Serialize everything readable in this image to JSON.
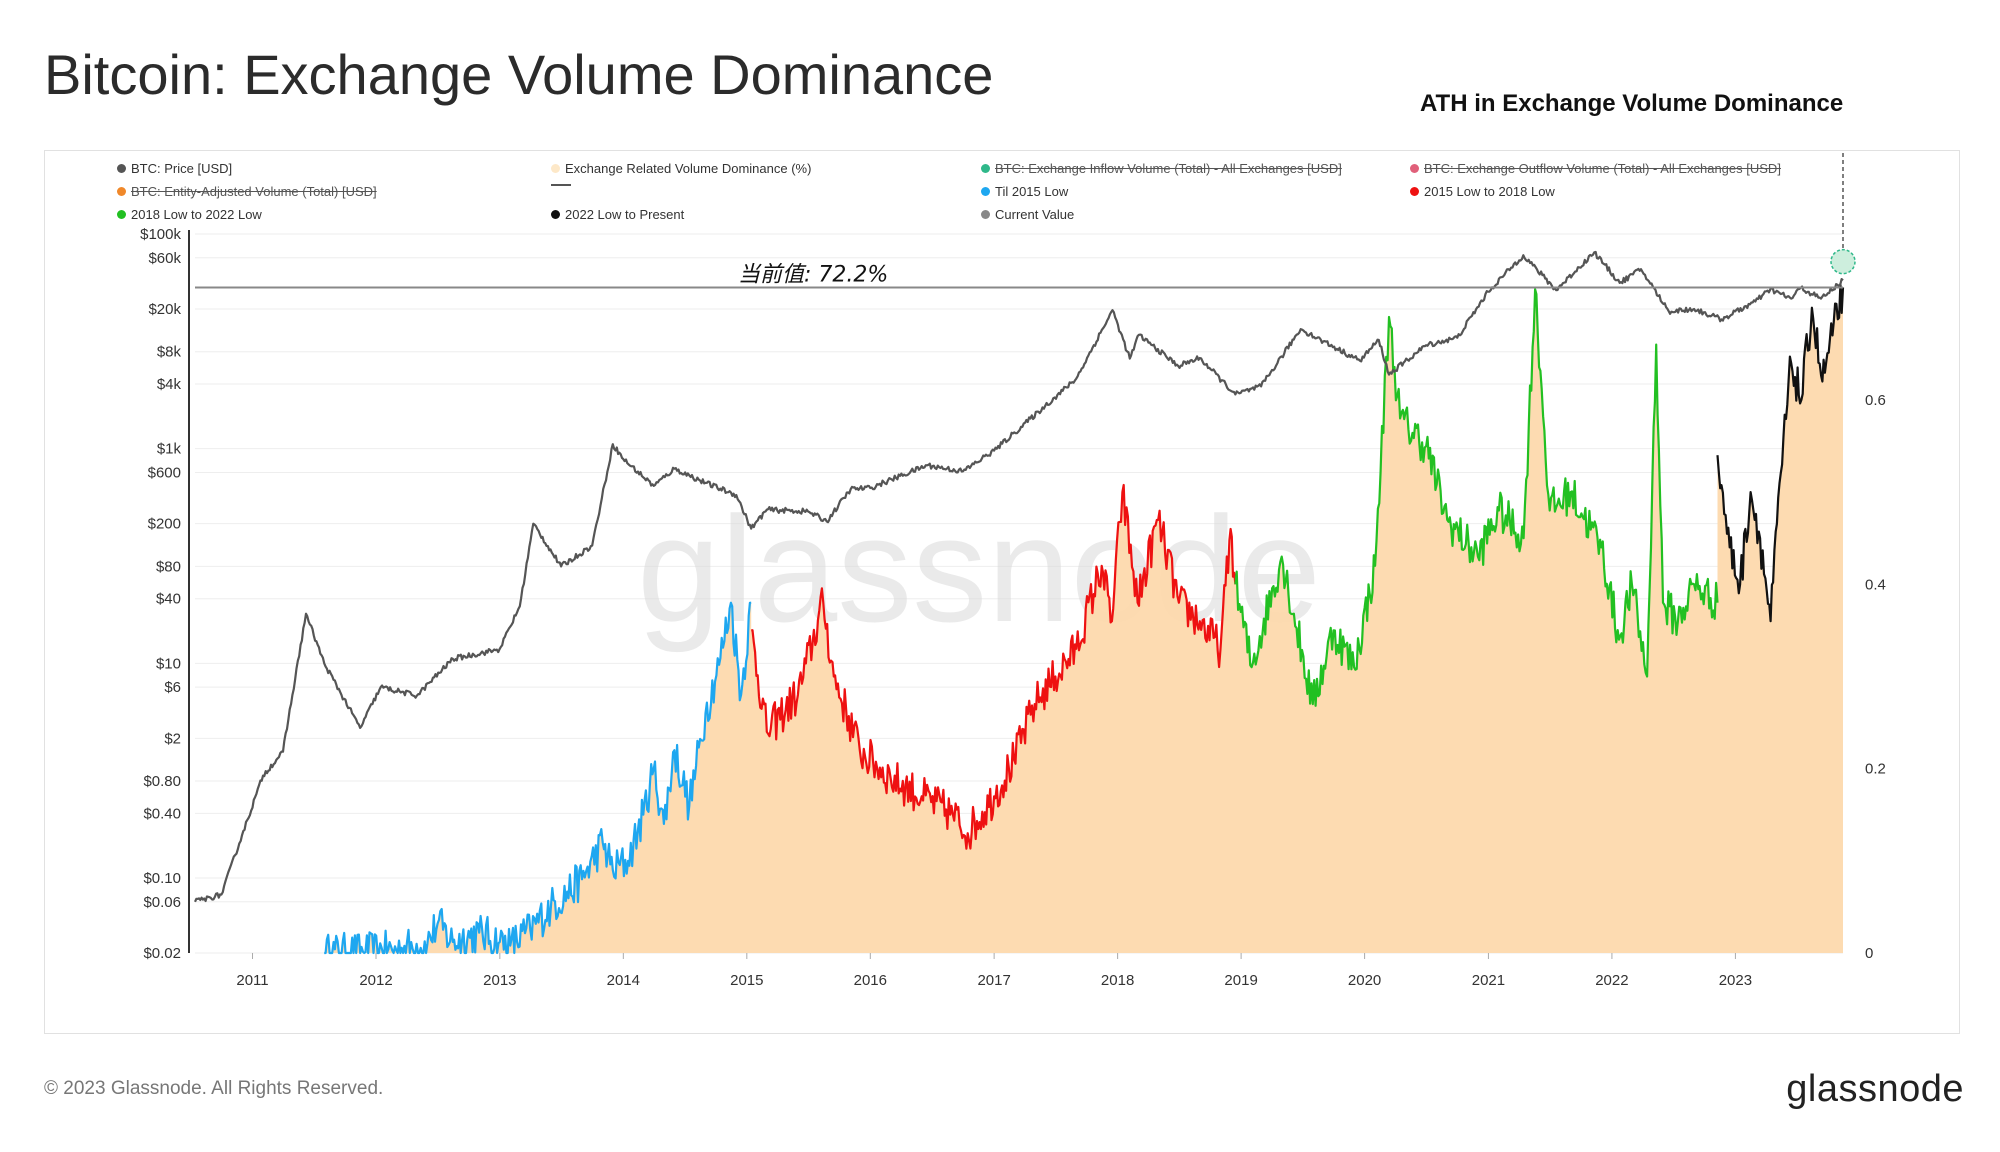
{
  "title": "Bitcoin: Exchange Volume Dominance",
  "ath_annotation": "ATH in Exchange Volume Dominance",
  "current_value_annotation": "当前值: 72.2%",
  "watermark": "glassnode",
  "footer": {
    "copyright": "© 2023 Glassnode. All Rights Reserved.",
    "logo": "glassnode"
  },
  "legend": [
    {
      "label": "BTC: Price [USD]",
      "color": "#555555",
      "struck": false,
      "marker": "dot"
    },
    {
      "label": "Exchange Related Volume Dominance (%)",
      "color": "#fde8c8",
      "struck": false,
      "marker": "dot"
    },
    {
      "label": "BTC: Exchange Inflow Volume (Total) - All Exchanges [USD]",
      "color": "#2fb88a",
      "struck": true,
      "marker": "dot"
    },
    {
      "label": "BTC: Exchange Outflow Volume (Total) - All Exchanges [USD]",
      "color": "#e0607a",
      "struck": true,
      "marker": "dot"
    },
    {
      "label": "BTC: Entity-Adjusted Volume (Total) [USD]",
      "color": "#f0882a",
      "struck": true,
      "marker": "dot"
    },
    {
      "label": "",
      "color": "#555555",
      "struck": false,
      "marker": "line"
    },
    {
      "label": "Til 2015 Low",
      "color": "#1ea7f0",
      "struck": false,
      "marker": "dot"
    },
    {
      "label": "2015 Low to 2018 Low",
      "color": "#ee1111",
      "struck": false,
      "marker": "dot"
    },
    {
      "label": "2018 Low to 2022 Low",
      "color": "#22c022",
      "struck": false,
      "marker": "dot"
    },
    {
      "label": "2022 Low to Present",
      "color": "#111111",
      "struck": false,
      "marker": "dot"
    },
    {
      "label": "Current Value",
      "color": "#888888",
      "struck": false,
      "marker": "dot"
    }
  ],
  "colors": {
    "price": "#555555",
    "dominance_fill": "#fdd9ad",
    "til_2015_low": "#1ea7f0",
    "low2015_to_low2018": "#ee1111",
    "low2018_to_low2022": "#22c022",
    "low2022_to_present": "#111111",
    "current_value_line": "#888888",
    "ath_marker": "#2fb88a"
  },
  "chart_data": {
    "type": "line",
    "x_axis": {
      "type": "date",
      "ticks": [
        "2011",
        "2012",
        "2013",
        "2014",
        "2015",
        "2016",
        "2017",
        "2018",
        "2019",
        "2020",
        "2021",
        "2022",
        "2023"
      ],
      "range": [
        "2010-07-15",
        "2023-11-15"
      ]
    },
    "y_left": {
      "label": "",
      "scale": "log",
      "range": [
        0.02,
        100000
      ],
      "ticks": [
        {
          "v": 100000,
          "t": "$100k"
        },
        {
          "v": 60000,
          "t": "$60k"
        },
        {
          "v": 20000,
          "t": "$20k"
        },
        {
          "v": 8000,
          "t": "$8k"
        },
        {
          "v": 4000,
          "t": "$4k"
        },
        {
          "v": 1000,
          "t": "$1k"
        },
        {
          "v": 600,
          "t": "$600"
        },
        {
          "v": 200,
          "t": "$200"
        },
        {
          "v": 80,
          "t": "$80"
        },
        {
          "v": 40,
          "t": "$40"
        },
        {
          "v": 10,
          "t": "$10"
        },
        {
          "v": 6,
          "t": "$6"
        },
        {
          "v": 2,
          "t": "$2"
        },
        {
          "v": 0.8,
          "t": "$0.80"
        },
        {
          "v": 0.4,
          "t": "$0.40"
        },
        {
          "v": 0.1,
          "t": "$0.10"
        },
        {
          "v": 0.06,
          "t": "$0.06"
        },
        {
          "v": 0.02,
          "t": "$0.02"
        }
      ]
    },
    "y_right": {
      "label": "",
      "scale": "linear",
      "range": [
        0,
        0.78
      ],
      "ticks": [
        0,
        0.2,
        0.4,
        0.6
      ]
    },
    "current_value": 0.722,
    "series": [
      {
        "name": "BTC: Price [USD]",
        "axis": "left",
        "points": [
          [
            "2010-07-15",
            0.06
          ],
          [
            "2010-10-01",
            0.07
          ],
          [
            "2010-12-01",
            0.25
          ],
          [
            "2011-02-01",
            0.9
          ],
          [
            "2011-04-01",
            1.5
          ],
          [
            "2011-06-08",
            29
          ],
          [
            "2011-08-01",
            10
          ],
          [
            "2011-11-15",
            2.5
          ],
          [
            "2012-01-15",
            6
          ],
          [
            "2012-05-01",
            5
          ],
          [
            "2012-08-15",
            11
          ],
          [
            "2012-12-31",
            13.5
          ],
          [
            "2013-03-01",
            34
          ],
          [
            "2013-04-10",
            200
          ],
          [
            "2013-07-01",
            80
          ],
          [
            "2013-10-01",
            125
          ],
          [
            "2013-12-01",
            1100
          ],
          [
            "2014-01-01",
            800
          ],
          [
            "2014-04-01",
            450
          ],
          [
            "2014-06-01",
            650
          ],
          [
            "2014-09-01",
            480
          ],
          [
            "2014-12-01",
            370
          ],
          [
            "2015-01-14",
            180
          ],
          [
            "2015-03-01",
            270
          ],
          [
            "2015-07-01",
            260
          ],
          [
            "2015-08-25",
            210
          ],
          [
            "2015-11-04",
            420
          ],
          [
            "2016-01-01",
            430
          ],
          [
            "2016-06-17",
            700
          ],
          [
            "2016-10-01",
            615
          ],
          [
            "2017-01-01",
            960
          ],
          [
            "2017-06-01",
            2500
          ],
          [
            "2017-09-01",
            4500
          ],
          [
            "2017-12-17",
            19500
          ],
          [
            "2018-02-06",
            6900
          ],
          [
            "2018-03-05",
            11500
          ],
          [
            "2018-06-29",
            5900
          ],
          [
            "2018-09-01",
            7000
          ],
          [
            "2018-12-15",
            3200
          ],
          [
            "2019-03-01",
            3800
          ],
          [
            "2019-06-26",
            13000
          ],
          [
            "2019-09-01",
            10000
          ],
          [
            "2019-12-18",
            6600
          ],
          [
            "2020-02-12",
            10300
          ],
          [
            "2020-03-13",
            4900
          ],
          [
            "2020-07-01",
            9200
          ],
          [
            "2020-10-01",
            10800
          ],
          [
            "2020-12-31",
            29000
          ],
          [
            "2021-04-14",
            63500
          ],
          [
            "2021-07-20",
            30000
          ],
          [
            "2021-11-10",
            67500
          ],
          [
            "2022-01-24",
            35000
          ],
          [
            "2022-03-28",
            47000
          ],
          [
            "2022-06-18",
            19000
          ],
          [
            "2022-09-01",
            20000
          ],
          [
            "2022-11-21",
            16000
          ],
          [
            "2023-03-01",
            23500
          ],
          [
            "2023-04-14",
            30500
          ],
          [
            "2023-06-15",
            25000
          ],
          [
            "2023-07-13",
            31500
          ],
          [
            "2023-09-11",
            25000
          ],
          [
            "2023-11-15",
            37000
          ]
        ]
      },
      {
        "name": "Til 2015 Low",
        "axis": "right",
        "points": [
          [
            "2011-08-01",
            0.0
          ],
          [
            "2011-12-01",
            0.001
          ],
          [
            "2012-03-01",
            0.003
          ],
          [
            "2012-06-01",
            0.01
          ],
          [
            "2012-07-01",
            0.032
          ],
          [
            "2012-08-15",
            0.012
          ],
          [
            "2012-11-01",
            0.022
          ],
          [
            "2013-01-01",
            0.012
          ],
          [
            "2013-02-01",
            0.008
          ],
          [
            "2013-04-01",
            0.025
          ],
          [
            "2013-06-01",
            0.05
          ],
          [
            "2013-09-01",
            0.08
          ],
          [
            "2013-11-01",
            0.12
          ],
          [
            "2013-12-01",
            0.09
          ],
          [
            "2014-01-15",
            0.1
          ],
          [
            "2014-03-01",
            0.15
          ],
          [
            "2014-04-01",
            0.2
          ],
          [
            "2014-05-01",
            0.14
          ],
          [
            "2014-06-01",
            0.22
          ],
          [
            "2014-07-15",
            0.16
          ],
          [
            "2014-09-01",
            0.26
          ],
          [
            "2014-10-15",
            0.32
          ],
          [
            "2014-11-15",
            0.38
          ],
          [
            "2014-12-15",
            0.28
          ],
          [
            "2015-01-14",
            0.38
          ]
        ]
      },
      {
        "name": "2015 Low to 2018 Low",
        "axis": "right",
        "points": [
          [
            "2015-01-14",
            0.35
          ],
          [
            "2015-03-01",
            0.24
          ],
          [
            "2015-06-01",
            0.28
          ],
          [
            "2015-08-15",
            0.38
          ],
          [
            "2015-09-15",
            0.3
          ],
          [
            "2015-12-01",
            0.22
          ],
          [
            "2016-03-01",
            0.19
          ],
          [
            "2016-06-01",
            0.17
          ],
          [
            "2016-09-01",
            0.15
          ],
          [
            "2016-10-15",
            0.13
          ],
          [
            "2017-01-01",
            0.17
          ],
          [
            "2017-03-01",
            0.21
          ],
          [
            "2017-05-01",
            0.27
          ],
          [
            "2017-07-01",
            0.3
          ],
          [
            "2017-09-01",
            0.33
          ],
          [
            "2017-11-15",
            0.42
          ],
          [
            "2017-12-15",
            0.36
          ],
          [
            "2018-01-15",
            0.5
          ],
          [
            "2018-03-01",
            0.38
          ],
          [
            "2018-05-01",
            0.47
          ],
          [
            "2018-07-01",
            0.38
          ],
          [
            "2018-09-01",
            0.36
          ],
          [
            "2018-11-01",
            0.33
          ],
          [
            "2018-12-01",
            0.46
          ],
          [
            "2018-12-15",
            0.4
          ]
        ]
      },
      {
        "name": "2018 Low to 2022 Low",
        "axis": "right",
        "points": [
          [
            "2018-12-15",
            0.4
          ],
          [
            "2019-02-01",
            0.31
          ],
          [
            "2019-05-01",
            0.43
          ],
          [
            "2019-08-01",
            0.27
          ],
          [
            "2019-10-01",
            0.35
          ],
          [
            "2019-12-01",
            0.31
          ],
          [
            "2020-02-01",
            0.42
          ],
          [
            "2020-03-13",
            0.69
          ],
          [
            "2020-04-15",
            0.58
          ],
          [
            "2020-07-01",
            0.55
          ],
          [
            "2020-09-01",
            0.47
          ],
          [
            "2020-12-01",
            0.43
          ],
          [
            "2021-02-01",
            0.48
          ],
          [
            "2021-04-15",
            0.45
          ],
          [
            "2021-05-19",
            0.72
          ],
          [
            "2021-07-01",
            0.48
          ],
          [
            "2021-09-01",
            0.5
          ],
          [
            "2021-12-01",
            0.44
          ],
          [
            "2022-01-22",
            0.34
          ],
          [
            "2022-03-01",
            0.4
          ],
          [
            "2022-04-15",
            0.3
          ],
          [
            "2022-05-12",
            0.66
          ],
          [
            "2022-06-01",
            0.38
          ],
          [
            "2022-07-15",
            0.36
          ],
          [
            "2022-09-01",
            0.4
          ],
          [
            "2022-11-09",
            0.38
          ]
        ]
      },
      {
        "name": "2022 Low to Present",
        "axis": "right",
        "points": [
          [
            "2022-11-09",
            0.54
          ],
          [
            "2022-12-15",
            0.44
          ],
          [
            "2023-01-15",
            0.4
          ],
          [
            "2023-02-15",
            0.5
          ],
          [
            "2023-03-15",
            0.45
          ],
          [
            "2023-04-15",
            0.36
          ],
          [
            "2023-05-15",
            0.52
          ],
          [
            "2023-06-15",
            0.64
          ],
          [
            "2023-07-15",
            0.6
          ],
          [
            "2023-08-15",
            0.7
          ],
          [
            "2023-09-15",
            0.62
          ],
          [
            "2023-10-15",
            0.67
          ],
          [
            "2023-11-15",
            0.722
          ]
        ]
      }
    ]
  }
}
